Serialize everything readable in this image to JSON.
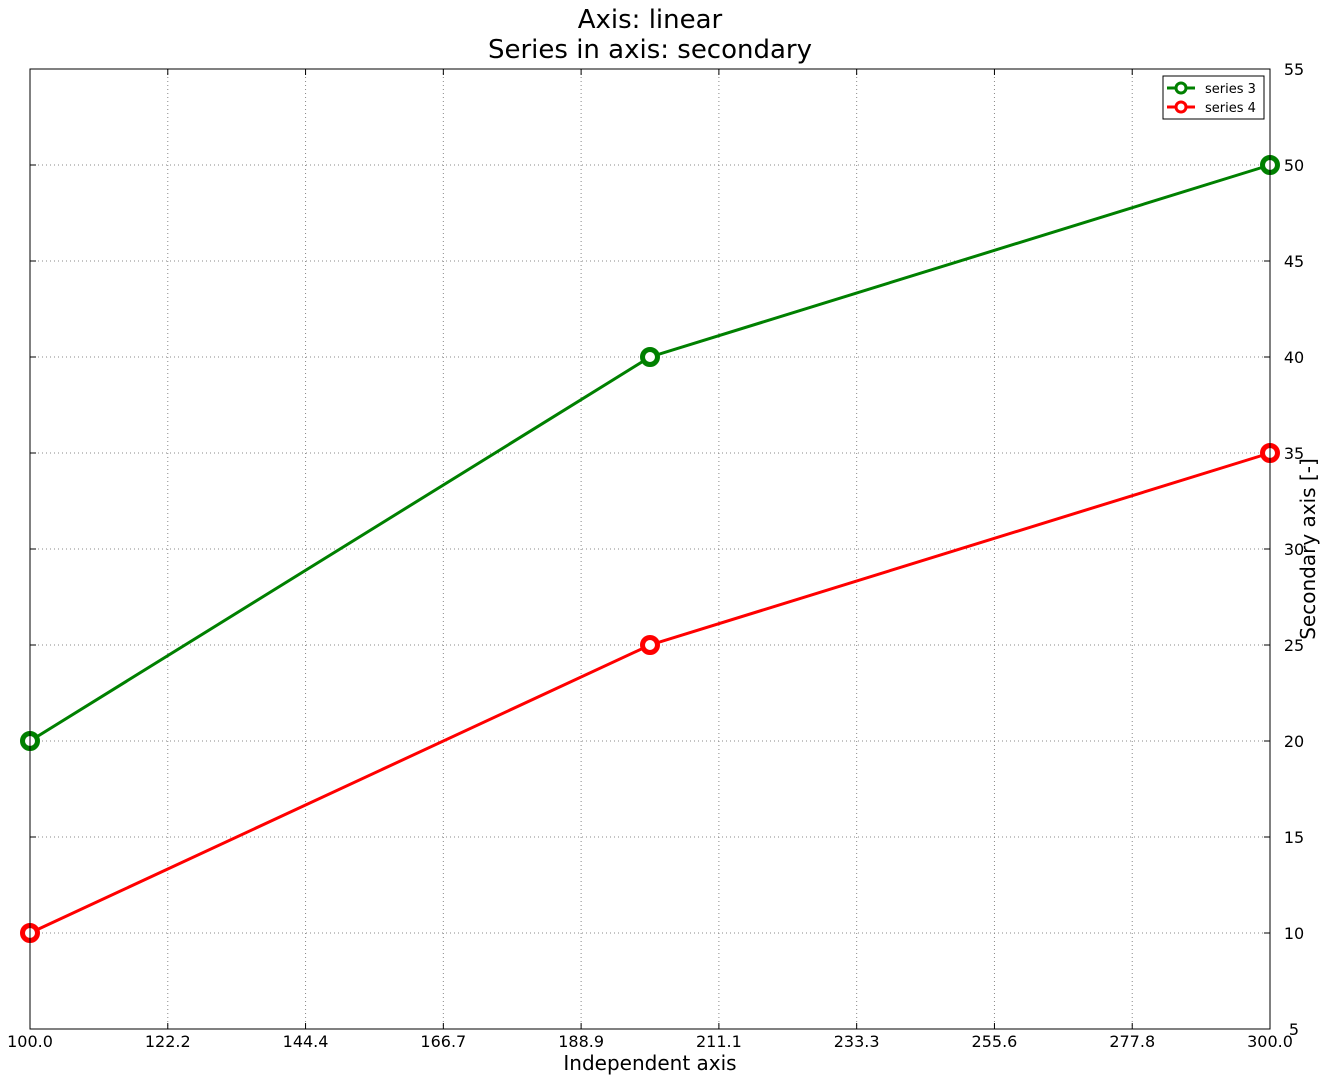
{
  "chart_data": {
    "type": "line",
    "title_line1": "Axis: linear",
    "title_line2": "Series in axis: secondary",
    "xlabel": "Independent axis",
    "ylabel": "Secondary axis [-]",
    "xlim": [
      100,
      300
    ],
    "ylim": [
      5,
      55
    ],
    "x_ticks": [
      "100.0",
      "122.2",
      "144.4",
      "166.7",
      "188.9",
      "211.1",
      "233.3",
      "255.6",
      "277.8",
      "300.0"
    ],
    "y_ticks": [
      "5",
      "10",
      "15",
      "20",
      "25",
      "30",
      "35",
      "40",
      "45",
      "50",
      "55"
    ],
    "grid": true,
    "legend_position": "top-right",
    "series": [
      {
        "name": "series 3",
        "color": "#008000",
        "x": [
          100,
          200,
          300
        ],
        "y": [
          20,
          40,
          50
        ]
      },
      {
        "name": "series 4",
        "color": "#ff0000",
        "x": [
          100,
          200,
          300
        ],
        "y": [
          10,
          25,
          35
        ]
      }
    ]
  }
}
